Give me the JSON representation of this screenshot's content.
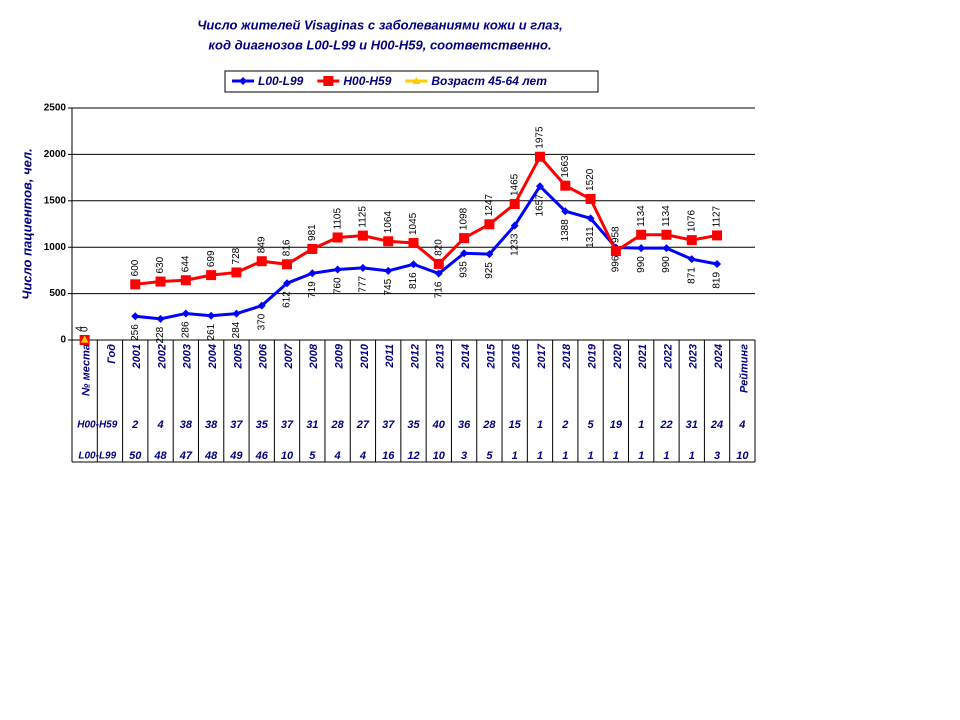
{
  "chart_data": {
    "type": "line",
    "title": [
      "Число жителей Visaginas с заболеваниями кожи и глаз,",
      "код диагнозов L00-L99 и H00-H59, соответственно."
    ],
    "y_label": "Число пациентов, чел.",
    "categories": [
      "№ места",
      "Год",
      "2001",
      "2002",
      "2003",
      "2004",
      "2005",
      "2006",
      "2007",
      "2008",
      "2009",
      "2010",
      "2011",
      "2012",
      "2013",
      "2014",
      "2015",
      "2016",
      "2017",
      "2018",
      "2019",
      "2020",
      "2021",
      "2022",
      "2023",
      "2024",
      "Рейтинг"
    ],
    "series": [
      {
        "name": "L00-L99",
        "color": "#0000ff",
        "marker": "diamond",
        "label_side": "below",
        "values": [
          null,
          null,
          256,
          228,
          286,
          261,
          284,
          370,
          612,
          719,
          760,
          777,
          745,
          816,
          716,
          935,
          925,
          1233,
          1657,
          1388,
          1311,
          996,
          990,
          990,
          871,
          819,
          null
        ]
      },
      {
        "name": "H00-H59",
        "color": "#ff0000",
        "marker": "square",
        "label_side": "above",
        "values": [
          0,
          null,
          600,
          630,
          644,
          699,
          728,
          849,
          816,
          981,
          1105,
          1125,
          1064,
          1045,
          820,
          1098,
          1247,
          1465,
          1975,
          1663,
          1520,
          958,
          1134,
          1134,
          1076,
          1127,
          null
        ]
      },
      {
        "name": "Возраст 45-64 лет",
        "color": "#ffcc00",
        "marker": "triangle",
        "label_side": "above",
        "values": [
          4,
          null,
          null,
          null,
          null,
          null,
          null,
          null,
          null,
          null,
          null,
          null,
          null,
          null,
          null,
          null,
          null,
          null,
          null,
          null,
          null,
          null,
          null,
          null,
          null,
          null,
          null
        ]
      }
    ],
    "ylim": [
      0,
      2500
    ],
    "yticks": [
      0,
      500,
      1000,
      1500,
      2000,
      2500
    ],
    "grid": true,
    "data_table": [
      {
        "label": "H00-H59",
        "values": [
          2,
          4,
          38,
          38,
          37,
          35,
          37,
          31,
          28,
          27,
          37,
          35,
          40,
          36,
          28,
          15,
          1,
          2,
          5,
          19,
          1,
          22,
          31,
          24,
          4
        ]
      },
      {
        "label": "L00-L99",
        "values": [
          50,
          48,
          47,
          48,
          49,
          46,
          10,
          5,
          4,
          4,
          16,
          12,
          10,
          3,
          5,
          1,
          1,
          1,
          1,
          1,
          1,
          1,
          1,
          3,
          10
        ]
      }
    ]
  }
}
